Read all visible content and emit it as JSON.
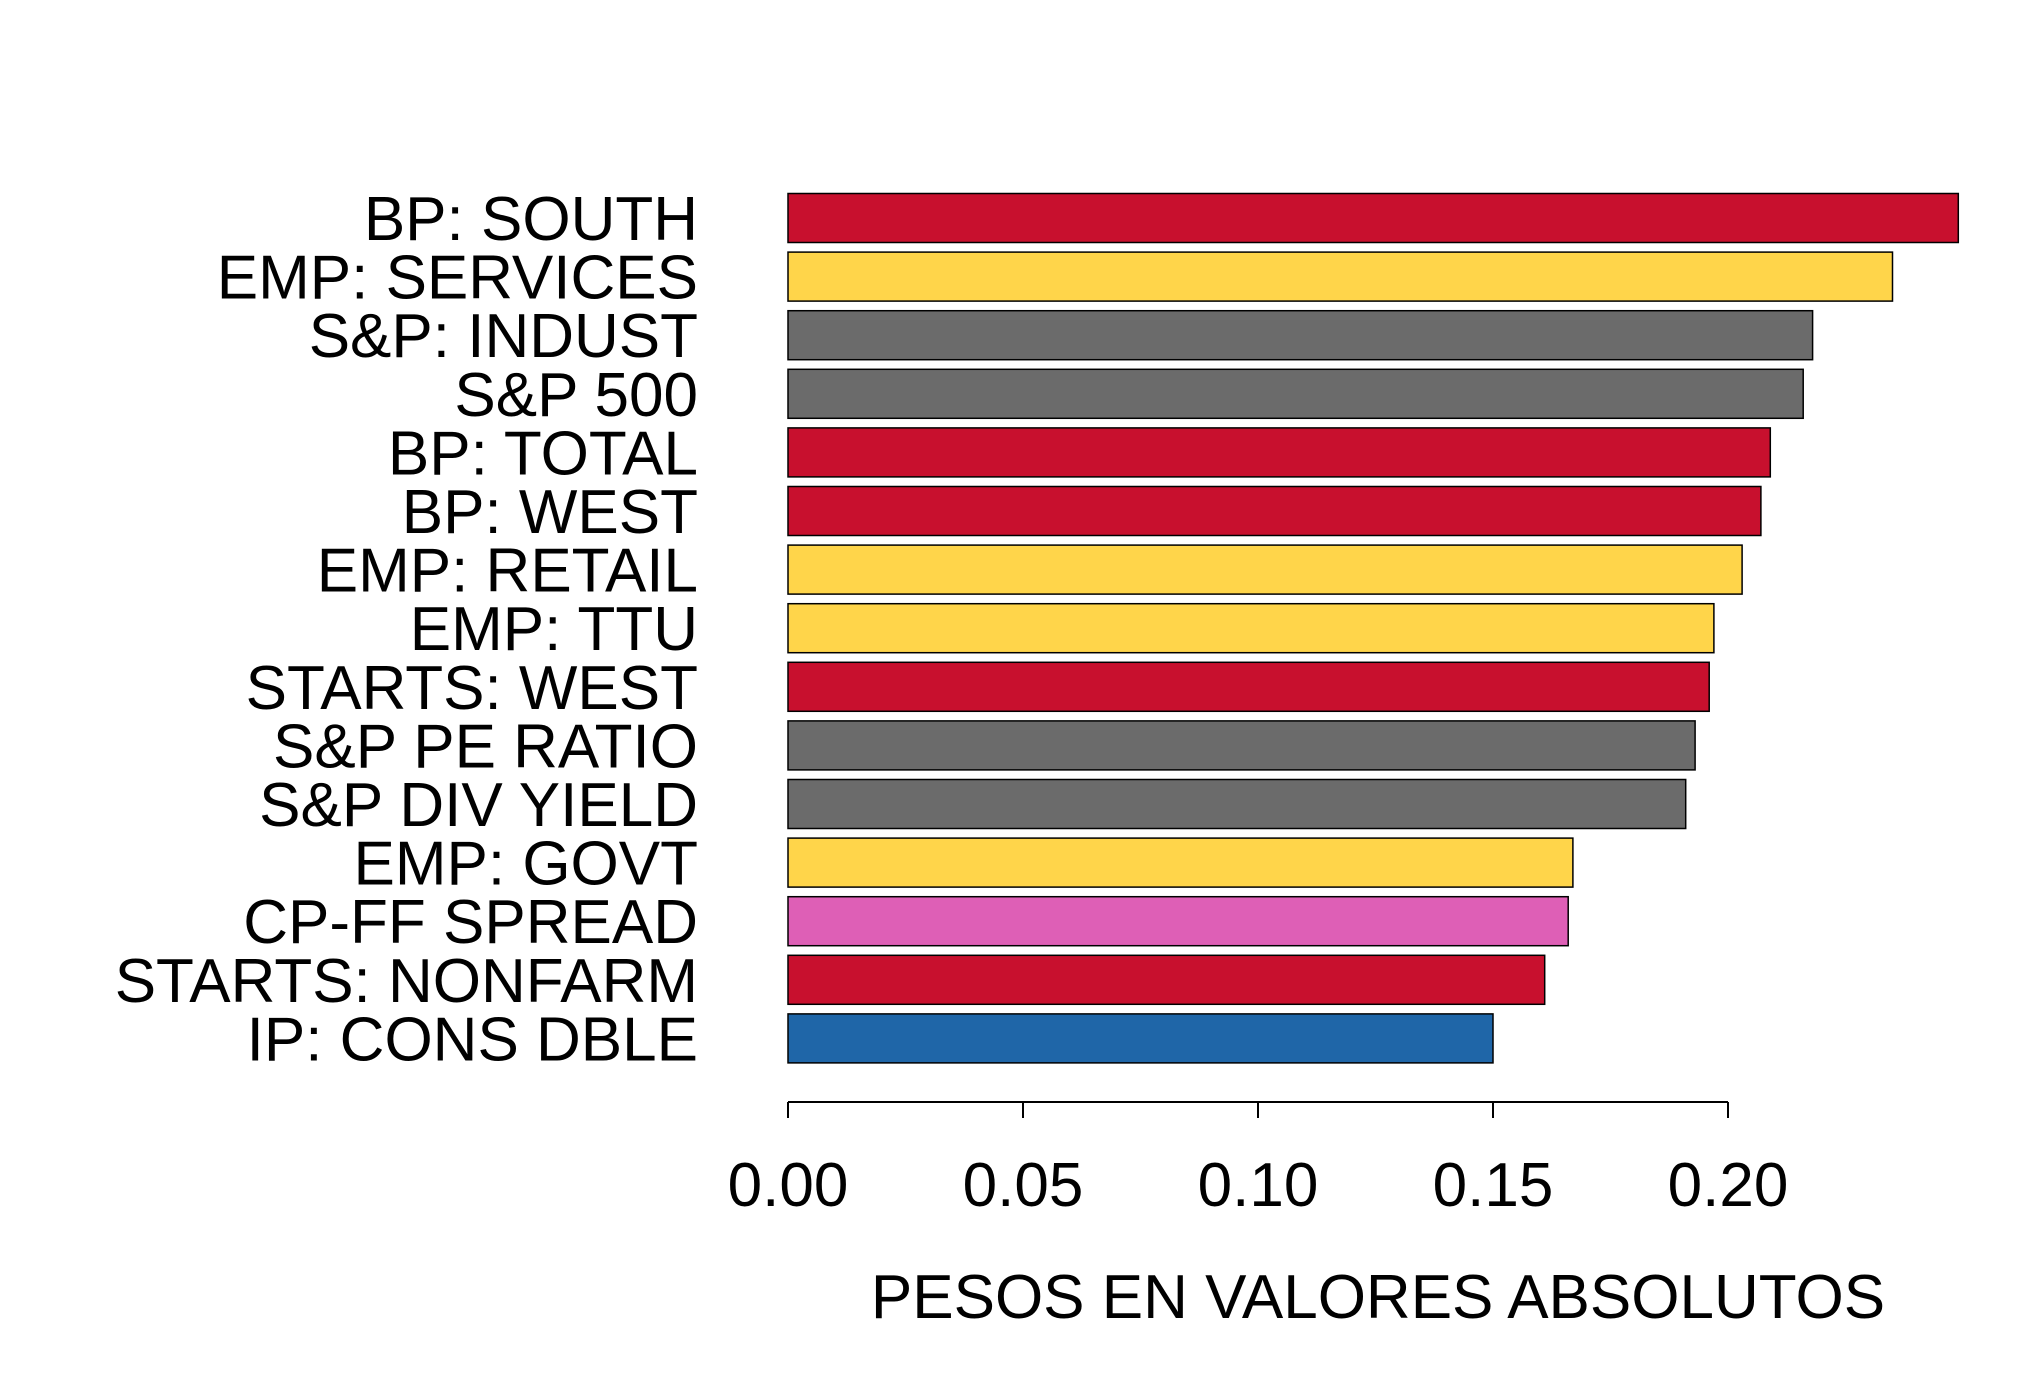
{
  "chart_data": {
    "type": "bar",
    "orientation": "horizontal",
    "xlabel": "PESOS EN VALORES ABSOLUTOS",
    "xlim": [
      0,
      0.25
    ],
    "xticks": [
      0.0,
      0.05,
      0.1,
      0.15,
      0.2
    ],
    "xtick_labels": [
      "0.00",
      "0.05",
      "0.10",
      "0.15",
      "0.20"
    ],
    "grid": false,
    "categories": [
      "BP: SOUTH",
      "EMP: SERVICES",
      "S&P: INDUST",
      "S&P 500",
      "BP: TOTAL",
      "BP: WEST",
      "EMP: RETAIL",
      "EMP: TTU",
      "STARTS: WEST",
      "S&P PE RATIO",
      "S&P DIV YIELD",
      "EMP: GOVT",
      "CP-FF SPREAD",
      "STARTS: NONFARM",
      "IP: CONS DBLE"
    ],
    "values": [
      0.249,
      0.235,
      0.218,
      0.216,
      0.209,
      0.207,
      0.203,
      0.197,
      0.196,
      0.193,
      0.191,
      0.167,
      0.166,
      0.161,
      0.15
    ],
    "colors": [
      "#c8102e",
      "#ffd54a",
      "#6b6b6b",
      "#6b6b6b",
      "#c8102e",
      "#c8102e",
      "#ffd54a",
      "#ffd54a",
      "#c8102e",
      "#6b6b6b",
      "#6b6b6b",
      "#ffd54a",
      "#de5fb6",
      "#c8102e",
      "#1f66a8"
    ]
  }
}
